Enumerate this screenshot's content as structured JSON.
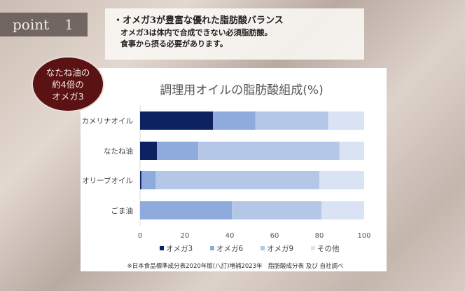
{
  "point": {
    "label": "point",
    "number": "1"
  },
  "info": {
    "heading": "・オメガ3が豊富な優れた脂肪酸バランス",
    "lines": [
      "オメガ3は体内で合成できない必須脂肪酸。",
      "食事から摂る必要があります。"
    ]
  },
  "bubble": {
    "lines": [
      "なたね油の",
      "約4倍の",
      "オメガ3"
    ]
  },
  "chart_data": {
    "type": "bar",
    "orientation": "horizontal",
    "stacked": true,
    "title": "調理用オイルの脂肪酸組成(%)",
    "categories": [
      "カメリナオイル",
      "なたね油",
      "オリーブオイル",
      "ごま油"
    ],
    "series": [
      {
        "name": "オメガ3",
        "color": "#0d2260",
        "values": [
          32.5,
          7.5,
          0.6,
          0
        ]
      },
      {
        "name": "オメガ6",
        "color": "#8faadc",
        "values": [
          19,
          18.5,
          6.4,
          41
        ]
      },
      {
        "name": "オメガ9",
        "color": "#b4c7e7",
        "values": [
          32.5,
          63,
          73,
          40
        ]
      },
      {
        "name": "その他",
        "color": "#dae3f3",
        "values": [
          16,
          11,
          20,
          19
        ]
      }
    ],
    "xlim": [
      0,
      100
    ],
    "xticks": [
      "0",
      "20",
      "40",
      "60",
      "80",
      "100"
    ],
    "legend": "bottom",
    "grid": false,
    "footnote": "※日本食品標準成分表2020年版(八訂)増補2023年　脂肪酸成分表 及び 自社調べ"
  }
}
